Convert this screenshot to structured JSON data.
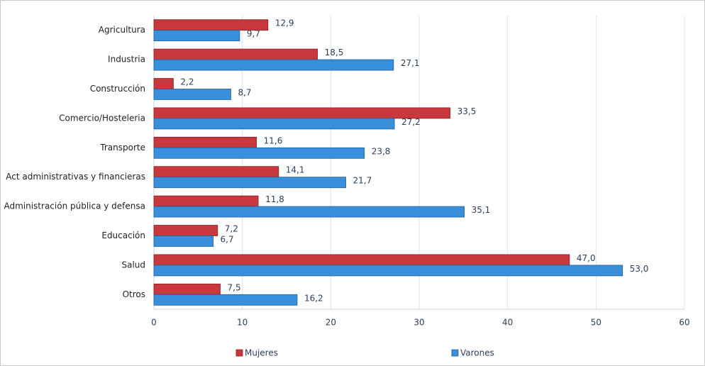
{
  "chart_data": {
    "type": "barh",
    "categories": [
      "Agricultura",
      "Industria",
      "Construcción",
      "Comercio/Hosteleria",
      "Transporte",
      "Act administrativas y financieras",
      "Administración pública y defensa",
      "Educación",
      "Salud",
      "Otros"
    ],
    "series": [
      {
        "name": "Mujeres",
        "color": "#c8383c",
        "values": [
          12.9,
          18.5,
          2.2,
          33.5,
          11.6,
          14.1,
          11.8,
          7.2,
          47.0,
          7.5
        ],
        "value_labels": [
          "12,9",
          "18,5",
          "2,2",
          "33,5",
          "11,6",
          "14,1",
          "11,8",
          "7,2",
          "47,0",
          "7,5"
        ]
      },
      {
        "name": "Varones",
        "color": "#3a8fdb",
        "values": [
          9.7,
          27.1,
          8.7,
          27.2,
          23.8,
          21.7,
          35.1,
          6.7,
          53.0,
          16.2
        ],
        "value_labels": [
          "9,7",
          "27,1",
          "8,7",
          "27,2",
          "23,8",
          "21,7",
          "35,1",
          "6,7",
          "53,0",
          "16,2"
        ]
      }
    ],
    "xlim": [
      0,
      60
    ],
    "xticks": [
      0,
      10,
      20,
      30,
      40,
      50,
      60
    ],
    "grid": true
  }
}
